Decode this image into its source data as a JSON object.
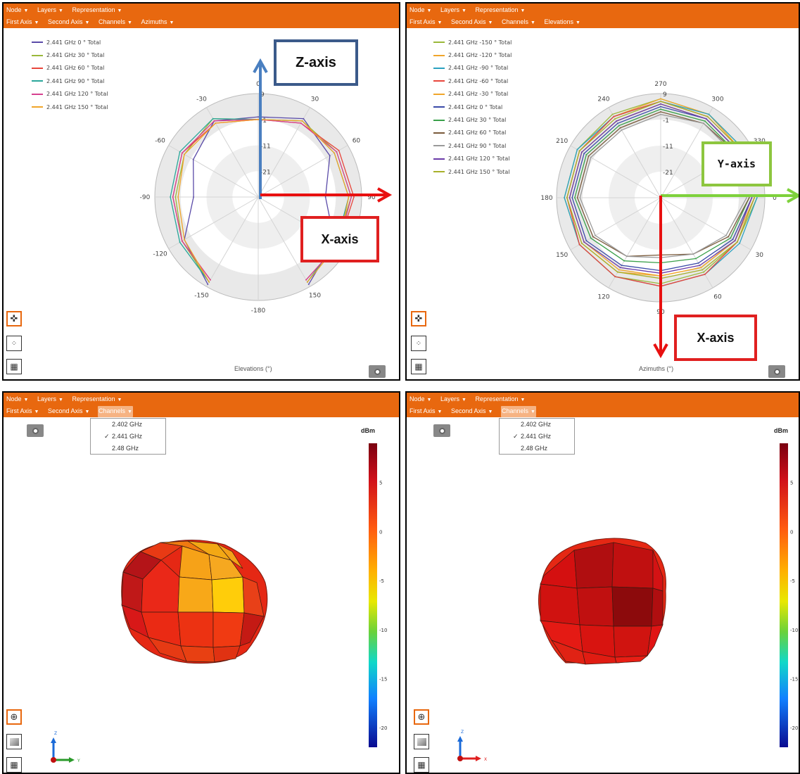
{
  "menus": {
    "row1": [
      "Node",
      "Layers",
      "Representation"
    ],
    "row2_elev": [
      "First Axis",
      "Second Axis",
      "Channels",
      "Azimuths"
    ],
    "row2_azim": [
      "First Axis",
      "Second Axis",
      "Channels",
      "Elevations"
    ],
    "row2_3d": [
      "First Axis",
      "Second Axis",
      "Channels"
    ]
  },
  "captions": {
    "elevations": "Elevations (°)",
    "azimuths": "Azimuths (°)"
  },
  "callouts": {
    "z": "Z-axis",
    "x": "X-axis",
    "y": "Y-axis"
  },
  "channels_dropdown": {
    "options": [
      "2.402 GHz",
      "2.441 GHz",
      "2.48 GHz"
    ],
    "selected": "2.441 GHz"
  },
  "colorbar": {
    "unit": "dBm",
    "ticks": [
      "5",
      "0",
      "-5",
      "-10",
      "-15",
      "-20"
    ],
    "range": [
      -22,
      9
    ]
  },
  "triad_left": {
    "up": "Z",
    "right": "Y"
  },
  "triad_right": {
    "up": "Z",
    "right": "X"
  },
  "chart_data": [
    {
      "type": "polar",
      "caption": "Elevations (°)",
      "radial_ticks": [
        "9",
        "-1",
        "-11",
        "-21"
      ],
      "radial_range": [
        -31,
        9
      ],
      "angle_labels": [
        "0",
        "30",
        "60",
        "90",
        "120",
        "150",
        "-180",
        "-150",
        "-120",
        "-90",
        "-60",
        "-30"
      ],
      "angle_label_values": [
        0,
        30,
        60,
        90,
        120,
        150,
        180,
        -150,
        -120,
        -90,
        -60,
        -30
      ],
      "series": [
        {
          "name": "2.441 GHz 0 ° Total",
          "color": "#5a4ba8",
          "theta": [
            -150,
            -120,
            -90,
            -60,
            -30,
            0,
            30,
            60,
            90,
            120,
            150
          ],
          "r": [
            8,
            2,
            -6,
            -2,
            3,
            0,
            4,
            1,
            -5,
            3,
            8
          ]
        },
        {
          "name": "2.441 GHz 30 ° Total",
          "color": "#9ab83a",
          "theta": [
            -150,
            -120,
            -90,
            -60,
            -30,
            0,
            30,
            60,
            90,
            120,
            150
          ],
          "r": [
            7,
            3,
            1,
            2,
            4,
            -1,
            3,
            4,
            5,
            4,
            7
          ]
        },
        {
          "name": "2.441 GHz 60 ° Total",
          "color": "#e8463c",
          "theta": [
            -150,
            -120,
            -90,
            -60,
            -30,
            0,
            30,
            60,
            90,
            120,
            150
          ],
          "r": [
            6,
            3,
            2,
            3,
            2,
            -1,
            2,
            5,
            6,
            5,
            6
          ]
        },
        {
          "name": "2.441 GHz 90 ° Total",
          "color": "#2aa79a",
          "theta": [
            -150,
            -120,
            -90,
            -60,
            -30,
            0,
            30,
            60,
            90,
            120,
            150
          ],
          "r": [
            7,
            4,
            3,
            4,
            4,
            -1,
            3,
            3,
            4,
            4,
            7
          ]
        },
        {
          "name": "2.441 GHz 120 ° Total",
          "color": "#d6418f",
          "theta": [
            -150,
            -120,
            -90,
            -60,
            -30,
            0,
            30,
            60,
            90,
            120,
            150
          ],
          "r": [
            6,
            3,
            2,
            3,
            3,
            -1,
            2,
            4,
            5,
            5,
            6
          ]
        },
        {
          "name": "2.441 GHz 150 ° Total",
          "color": "#f0a52a",
          "theta": [
            -150,
            -120,
            -90,
            -60,
            -30,
            0,
            30,
            60,
            90,
            120,
            150
          ],
          "r": [
            7,
            2,
            0,
            2,
            2,
            -1,
            3,
            3,
            4,
            5,
            7
          ]
        }
      ]
    },
    {
      "type": "polar",
      "caption": "Azimuths (°)",
      "radial_ticks": [
        "9",
        "-1",
        "-11",
        "-21"
      ],
      "radial_range": [
        -31,
        9
      ],
      "angle_labels": [
        "270",
        "300",
        "330",
        "0",
        "30",
        "60",
        "90",
        "120",
        "150",
        "180",
        "210",
        "240"
      ],
      "angle_label_values": [
        270,
        300,
        330,
        0,
        30,
        60,
        90,
        120,
        150,
        180,
        210,
        240
      ],
      "series": [
        {
          "name": "2.441 GHz -150 ° Total",
          "color": "#9ab83a",
          "theta": [
            0,
            30,
            60,
            90,
            120,
            150,
            180,
            210,
            240,
            270,
            300,
            330
          ],
          "r": [
            6,
            3,
            2,
            2,
            4,
            5,
            6,
            6,
            6,
            7,
            6,
            6
          ]
        },
        {
          "name": "2.441 GHz -120 ° Total",
          "color": "#f0a52a",
          "theta": [
            0,
            30,
            60,
            90,
            120,
            150,
            180,
            210,
            240,
            270,
            300,
            330
          ],
          "r": [
            5,
            2,
            0,
            -1,
            2,
            4,
            5,
            5,
            5,
            7,
            6,
            5
          ]
        },
        {
          "name": "2.441 GHz -90 ° Total",
          "color": "#2aa1c0",
          "theta": [
            0,
            30,
            60,
            90,
            120,
            150,
            180,
            210,
            240,
            270,
            300,
            330
          ],
          "r": [
            6,
            4,
            3,
            3,
            4,
            5,
            6,
            6,
            5,
            6,
            6,
            6
          ]
        },
        {
          "name": "2.441 GHz -60 ° Total",
          "color": "#e8463c",
          "theta": [
            0,
            30,
            60,
            90,
            120,
            150,
            180,
            210,
            240,
            270,
            300,
            330
          ],
          "r": [
            5,
            3,
            3,
            3,
            4,
            5,
            5,
            5,
            5,
            6,
            5,
            5
          ]
        },
        {
          "name": "2.441 GHz -30 ° Total",
          "color": "#f0a52a",
          "theta": [
            0,
            30,
            60,
            90,
            120,
            150,
            180,
            210,
            240,
            270,
            300,
            330
          ],
          "r": [
            4,
            2,
            0,
            -1,
            1,
            3,
            4,
            4,
            3,
            5,
            4,
            4
          ]
        },
        {
          "name": "2.441 GHz 0 ° Total",
          "color": "#3a4aa8",
          "theta": [
            0,
            30,
            60,
            90,
            120,
            150,
            180,
            210,
            240,
            270,
            300,
            330
          ],
          "r": [
            4,
            1,
            -2,
            -3,
            -1,
            2,
            3,
            3,
            2,
            4,
            4,
            4
          ]
        },
        {
          "name": "2.441 GHz 30 ° Total",
          "color": "#3aa04a",
          "theta": [
            0,
            30,
            60,
            90,
            120,
            150,
            180,
            210,
            240,
            270,
            300,
            330
          ],
          "r": [
            3,
            0,
            -4,
            -6,
            -3,
            0,
            2,
            2,
            1,
            3,
            3,
            3
          ]
        },
        {
          "name": "2.441 GHz 60 ° Total",
          "color": "#7a5a3a",
          "theta": [
            0,
            30,
            60,
            90,
            120,
            150,
            180,
            210,
            240,
            270,
            300,
            330
          ],
          "r": [
            3,
            -1,
            -6,
            -9,
            -5,
            -1,
            1,
            1,
            0,
            2,
            2,
            3
          ]
        },
        {
          "name": "2.441 GHz 90 ° Total",
          "color": "#9a9a9a",
          "theta": [
            0,
            30,
            60,
            90,
            120,
            150,
            180,
            210,
            240,
            270,
            300,
            330
          ],
          "r": [
            2,
            -2,
            -6,
            -8,
            -5,
            -2,
            0,
            0,
            -1,
            1,
            2,
            2
          ]
        },
        {
          "name": "2.441 GHz 120 ° Total",
          "color": "#6a3aa8",
          "theta": [
            0,
            30,
            60,
            90,
            120,
            150,
            180,
            210,
            240,
            270,
            300,
            330
          ],
          "r": [
            4,
            2,
            -1,
            -2,
            0,
            3,
            4,
            4,
            3,
            5,
            4,
            4
          ]
        },
        {
          "name": "2.441 GHz 150 ° Total",
          "color": "#a8b02a",
          "theta": [
            0,
            30,
            60,
            90,
            120,
            150,
            180,
            210,
            240,
            270,
            300,
            330
          ],
          "r": [
            5,
            3,
            1,
            0,
            2,
            4,
            5,
            5,
            4,
            6,
            5,
            5
          ]
        }
      ]
    }
  ]
}
